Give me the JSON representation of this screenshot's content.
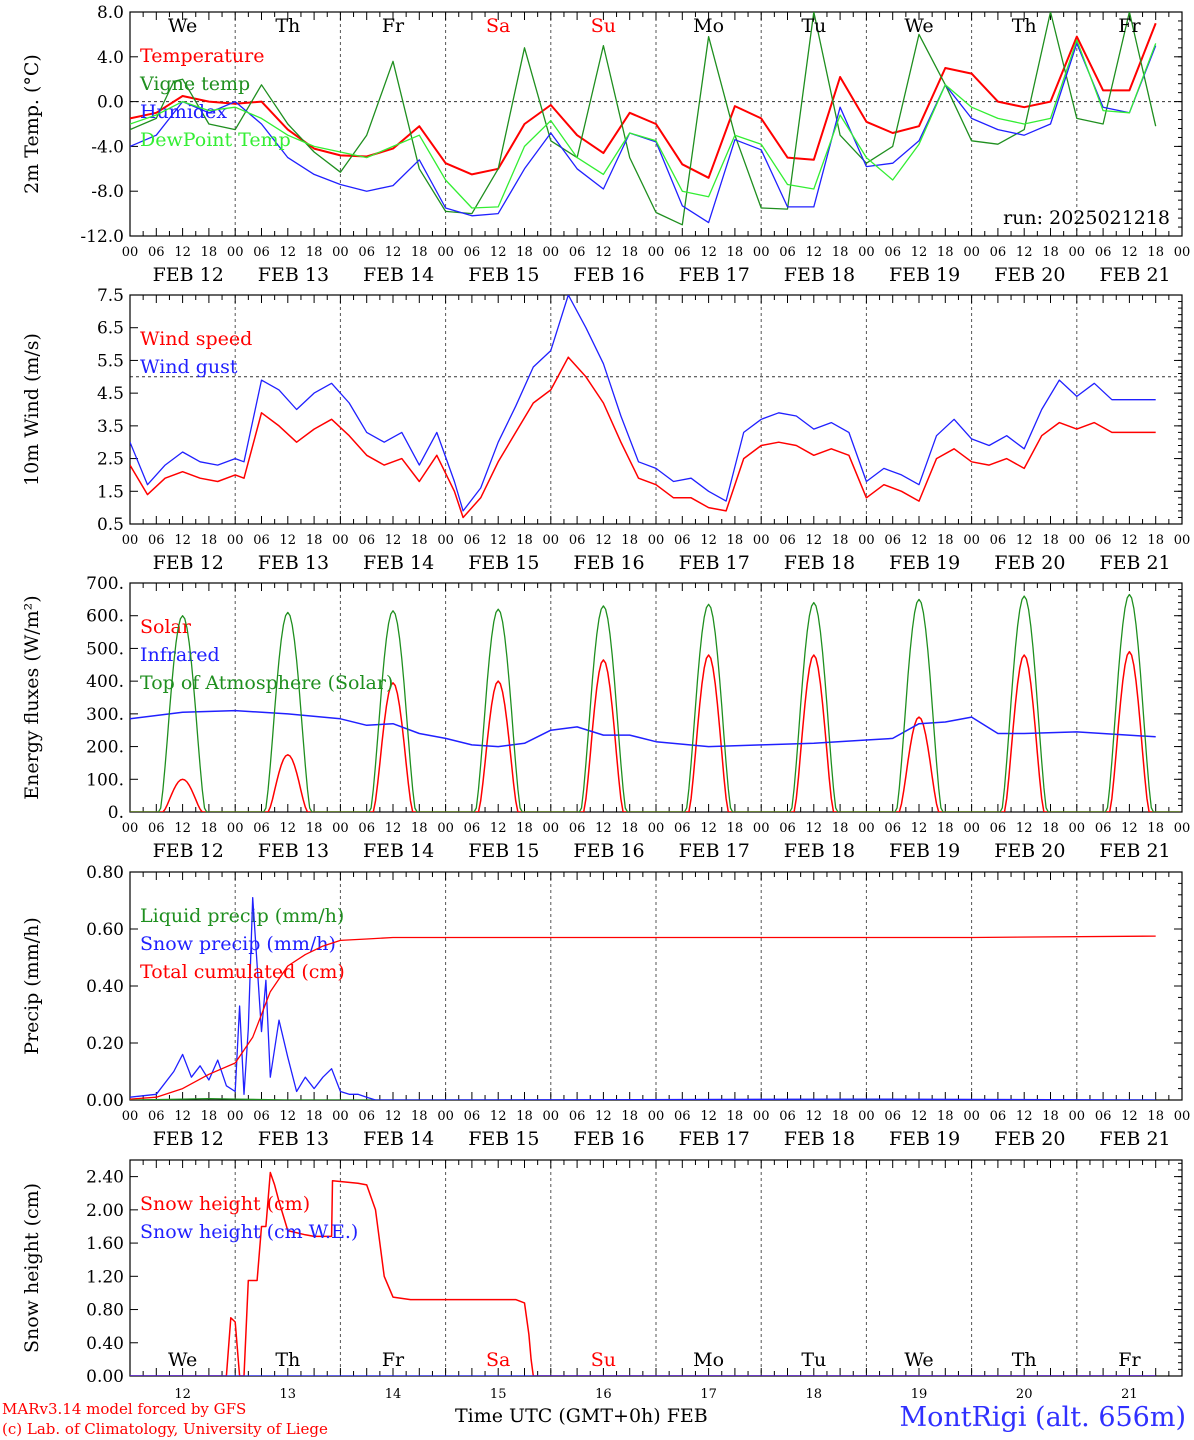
{
  "days": {
    "labels": [
      "We",
      "Th",
      "Fr",
      "Sa",
      "Su",
      "Mo",
      "Tu",
      "We",
      "Th",
      "Fr"
    ],
    "colors": [
      "#000000",
      "#000000",
      "#000000",
      "#ff0000",
      "#ff0000",
      "#000000",
      "#000000",
      "#000000",
      "#000000",
      "#000000"
    ],
    "dates": [
      "FEB 12",
      "FEB 13",
      "FEB 14",
      "FEB 15",
      "FEB 16",
      "FEB 17",
      "FEB 18",
      "FEB 19",
      "FEB 20",
      "FEB 21"
    ],
    "day_numbers": [
      "12",
      "13",
      "14",
      "15",
      "16",
      "17",
      "18",
      "19",
      "20",
      "21"
    ],
    "hour_ticks": [
      "00",
      "06",
      "12",
      "18"
    ],
    "last_tick": "00"
  },
  "chart_data": [
    {
      "id": "temp",
      "type": "line",
      "ylabel": "2m Temp. (°C)",
      "ylim": [
        -12,
        8
      ],
      "yticks": [
        "8.0",
        "4.0",
        "0.0",
        "-4.0",
        "-8.0",
        "-12.0"
      ],
      "ytick_values": [
        8,
        4,
        0,
        -4,
        -8,
        -12
      ],
      "ref_line": 0,
      "show_day_names": true,
      "annotation": "run: 2025021218",
      "series": [
        {
          "name": "Temperature",
          "color": "#ff0000",
          "width": 2,
          "x": [
            0,
            6,
            12,
            18,
            24,
            30,
            36,
            42,
            48,
            54,
            60,
            66,
            72,
            78,
            84,
            90,
            96,
            102,
            108,
            114,
            120,
            126,
            132,
            138,
            144,
            150,
            156,
            162,
            168,
            174,
            180,
            186,
            192,
            198,
            204,
            210,
            216,
            222,
            228,
            234
          ],
          "y": [
            -1.5,
            -1,
            0.5,
            0,
            -0.2,
            0,
            -2.5,
            -4.2,
            -4.8,
            -4.9,
            -4.2,
            -2.2,
            -5.5,
            -6.5,
            -6,
            -2,
            -0.3,
            -3,
            -4.6,
            -1,
            -2,
            -5.6,
            -6.8,
            -0.4,
            -1.5,
            -5,
            -5.2,
            2.2,
            -1.8,
            -2.8,
            -2.2,
            3,
            2.5,
            0,
            -0.5,
            0,
            5.8,
            1,
            1,
            7
          ]
        },
        {
          "name": "Vigne temp",
          "color": "#1f8f1f",
          "width": 1.3,
          "x": [
            0,
            6,
            10,
            12,
            18,
            24,
            30,
            36,
            42,
            48,
            54,
            60,
            66,
            72,
            78,
            84,
            90,
            96,
            102,
            108,
            114,
            120,
            126,
            132,
            138,
            144,
            150,
            156,
            162,
            168,
            174,
            180,
            186,
            192,
            198,
            204,
            210,
            216,
            222,
            228,
            234
          ],
          "y": [
            -2.5,
            -1.5,
            1.8,
            2,
            -2,
            -2.5,
            1.5,
            -2,
            -4.5,
            -6.3,
            -3,
            3.6,
            -6,
            -9.8,
            -10,
            -6,
            4.8,
            -3.5,
            -5,
            5,
            -5,
            -9.9,
            -11,
            5.8,
            -3,
            -9.5,
            -9.6,
            8,
            -3,
            -5.5,
            -4,
            6,
            1.5,
            -3.5,
            -3.8,
            -2.5,
            8,
            -1.5,
            -2,
            8,
            -2.2
          ]
        },
        {
          "name": "Humidex",
          "color": "#2020ff",
          "width": 1.3,
          "x": [
            0,
            6,
            12,
            18,
            24,
            30,
            36,
            42,
            48,
            54,
            60,
            66,
            72,
            78,
            84,
            90,
            96,
            102,
            108,
            114,
            120,
            126,
            132,
            138,
            144,
            150,
            156,
            162,
            168,
            174,
            180,
            186,
            192,
            198,
            204,
            210,
            216,
            222,
            228,
            234
          ],
          "y": [
            -4,
            -3,
            0,
            -1,
            0,
            -2,
            -5,
            -6.5,
            -7.4,
            -8,
            -7.5,
            -5.2,
            -9.5,
            -10.2,
            -10,
            -6,
            -2.8,
            -6,
            -7.8,
            -2.8,
            -3.6,
            -9.3,
            -10.8,
            -3.4,
            -4.3,
            -9.4,
            -9.4,
            -0.5,
            -5.8,
            -5.5,
            -3.5,
            1.5,
            -1.5,
            -2.5,
            -3,
            -2,
            5.2,
            -0.5,
            -1,
            5
          ]
        },
        {
          "name": "DewPoint Temp",
          "color": "#33ee33",
          "width": 1.3,
          "x": [
            0,
            6,
            12,
            18,
            24,
            30,
            36,
            42,
            48,
            54,
            60,
            66,
            72,
            78,
            84,
            90,
            96,
            102,
            108,
            114,
            120,
            126,
            132,
            138,
            144,
            150,
            156,
            162,
            168,
            174,
            180,
            186,
            192,
            198,
            204,
            210,
            216,
            222,
            228,
            234
          ],
          "y": [
            -2,
            -1.2,
            0,
            -0.8,
            -0.5,
            -1.5,
            -3,
            -4,
            -4.5,
            -5,
            -4,
            -3,
            -7,
            -9.5,
            -9.4,
            -4,
            -1.7,
            -5,
            -6.5,
            -2.8,
            -3.5,
            -8,
            -8.5,
            -3,
            -3.8,
            -7.4,
            -7.8,
            -1.2,
            -5,
            -7,
            -3.8,
            1.5,
            -0.5,
            -1.5,
            -2,
            -1.5,
            5.5,
            -0.8,
            -1,
            5.2
          ]
        }
      ]
    },
    {
      "id": "wind",
      "type": "line",
      "ylabel": "10m Wind (m/s)",
      "ylim": [
        0.5,
        7.5
      ],
      "yticks": [
        "7.5",
        "6.5",
        "5.5",
        "4.5",
        "3.5",
        "2.5",
        "1.5",
        "0.5"
      ],
      "ytick_values": [
        7.5,
        6.5,
        5.5,
        4.5,
        3.5,
        2.5,
        1.5,
        0.5
      ],
      "ref_line": 5,
      "show_day_names": false,
      "series": [
        {
          "name": "Wind speed",
          "color": "#ff0000",
          "width": 1.5,
          "x": [
            0,
            4,
            8,
            12,
            16,
            20,
            24,
            26,
            30,
            34,
            38,
            42,
            46,
            50,
            54,
            58,
            62,
            66,
            70,
            74,
            76,
            80,
            84,
            88,
            92,
            96,
            100,
            104,
            108,
            112,
            116,
            120,
            124,
            128,
            132,
            136,
            140,
            144,
            148,
            152,
            156,
            160,
            164,
            168,
            172,
            176,
            180,
            184,
            188,
            192,
            196,
            200,
            204,
            208,
            212,
            216,
            220,
            224,
            228,
            232,
            234
          ],
          "y": [
            2.3,
            1.4,
            1.9,
            2.1,
            1.9,
            1.8,
            2.0,
            1.9,
            3.9,
            3.5,
            3.0,
            3.4,
            3.7,
            3.2,
            2.6,
            2.3,
            2.5,
            1.8,
            2.6,
            1.5,
            0.7,
            1.3,
            2.4,
            3.3,
            4.2,
            4.6,
            5.6,
            5.0,
            4.2,
            3.0,
            1.9,
            1.7,
            1.3,
            1.3,
            1.0,
            0.9,
            2.5,
            2.9,
            3.0,
            2.9,
            2.6,
            2.8,
            2.6,
            1.3,
            1.7,
            1.5,
            1.2,
            2.5,
            2.8,
            2.4,
            2.3,
            2.5,
            2.2,
            3.2,
            3.6,
            3.4,
            3.6,
            3.3,
            3.3,
            3.3,
            3.3
          ]
        },
        {
          "name": "Wind gust",
          "color": "#2020ff",
          "width": 1.3,
          "x": [
            0,
            4,
            8,
            12,
            16,
            20,
            24,
            26,
            30,
            34,
            38,
            42,
            46,
            50,
            54,
            58,
            62,
            66,
            70,
            74,
            76,
            80,
            84,
            88,
            92,
            96,
            100,
            104,
            108,
            112,
            116,
            120,
            124,
            128,
            132,
            136,
            140,
            144,
            148,
            152,
            156,
            160,
            164,
            168,
            172,
            176,
            180,
            184,
            188,
            192,
            196,
            200,
            204,
            208,
            212,
            216,
            220,
            224,
            228,
            232,
            234
          ],
          "y": [
            3.0,
            1.7,
            2.3,
            2.7,
            2.4,
            2.3,
            2.5,
            2.4,
            4.9,
            4.6,
            4.0,
            4.5,
            4.8,
            4.2,
            3.3,
            3.0,
            3.3,
            2.3,
            3.3,
            1.8,
            0.9,
            1.6,
            3.0,
            4.1,
            5.3,
            5.8,
            7.5,
            6.5,
            5.4,
            3.8,
            2.4,
            2.2,
            1.8,
            1.9,
            1.5,
            1.2,
            3.3,
            3.7,
            3.9,
            3.8,
            3.4,
            3.6,
            3.3,
            1.8,
            2.2,
            2.0,
            1.7,
            3.2,
            3.7,
            3.1,
            2.9,
            3.2,
            2.8,
            4.0,
            4.9,
            4.4,
            4.8,
            4.3,
            4.3,
            4.3,
            4.3
          ]
        }
      ]
    },
    {
      "id": "flux",
      "type": "line",
      "ylabel": "Energy fluxes (W/m²)",
      "ylim": [
        0,
        700
      ],
      "yticks": [
        "700.",
        "600.",
        "500.",
        "400.",
        "300.",
        "200.",
        "100.",
        "0."
      ],
      "ytick_values": [
        700,
        600,
        500,
        400,
        300,
        200,
        100,
        0
      ],
      "show_day_names": false,
      "series": [
        {
          "name": "Solar",
          "color": "#ff0000",
          "width": 1.5,
          "peaks": [
            100,
            175,
            395,
            400,
            465,
            480,
            480,
            290,
            480,
            490
          ]
        },
        {
          "name": "Infrared",
          "color": "#2020ff",
          "width": 1.5,
          "x": [
            0,
            12,
            24,
            36,
            48,
            54,
            60,
            66,
            72,
            78,
            84,
            90,
            96,
            102,
            108,
            114,
            120,
            132,
            144,
            156,
            168,
            174,
            180,
            186,
            192,
            198,
            204,
            216,
            234
          ],
          "y": [
            285,
            305,
            310,
            300,
            285,
            265,
            270,
            240,
            225,
            205,
            200,
            210,
            250,
            260,
            235,
            235,
            215,
            200,
            205,
            210,
            220,
            225,
            270,
            275,
            290,
            240,
            240,
            245,
            230
          ]
        },
        {
          "name": "Top of Atmosphere (Solar)",
          "color": "#1f8f1f",
          "width": 1.3,
          "peaks": [
            600,
            610,
            615,
            620,
            630,
            635,
            640,
            650,
            660,
            665
          ]
        }
      ]
    },
    {
      "id": "precip",
      "type": "line",
      "ylabel": "Precip (mm/h)",
      "ylim": [
        0,
        0.8
      ],
      "yticks": [
        "0.80",
        "0.60",
        "0.40",
        "0.20",
        "0.00"
      ],
      "ytick_values": [
        0.8,
        0.6,
        0.4,
        0.2,
        0
      ],
      "show_day_names": false,
      "series": [
        {
          "name": "Liquid precip (mm/h)",
          "color": "#1f8f1f",
          "width": 1.3,
          "x": [
            0,
            12,
            18,
            24,
            36,
            48,
            234
          ],
          "y": [
            0,
            0.003,
            0.005,
            0.003,
            0,
            0,
            0
          ]
        },
        {
          "name": "Snow precip (mm/h)",
          "color": "#2020ff",
          "width": 1.3,
          "x": [
            0,
            6,
            10,
            12,
            14,
            16,
            18,
            20,
            22,
            24,
            25,
            26,
            27,
            28,
            30,
            31,
            32,
            34,
            36,
            38,
            40,
            42,
            44,
            46,
            48,
            50,
            52,
            54,
            56,
            60,
            72,
            168,
            234
          ],
          "y": [
            0.01,
            0.02,
            0.1,
            0.16,
            0.08,
            0.12,
            0.07,
            0.14,
            0.05,
            0.03,
            0.33,
            0.02,
            0.25,
            0.71,
            0.24,
            0.42,
            0.08,
            0.28,
            0.15,
            0.03,
            0.08,
            0.04,
            0.08,
            0.11,
            0.03,
            0.02,
            0.02,
            0.01,
            0,
            0,
            0,
            0.003,
            0
          ]
        },
        {
          "name": "Total cumulated (cm)",
          "color": "#ff0000",
          "width": 1.3,
          "x": [
            0,
            6,
            12,
            18,
            24,
            28,
            32,
            36,
            40,
            44,
            48,
            54,
            60,
            72,
            96,
            192,
            234
          ],
          "y": [
            0.003,
            0.01,
            0.04,
            0.09,
            0.13,
            0.22,
            0.38,
            0.47,
            0.51,
            0.54,
            0.56,
            0.565,
            0.57,
            0.57,
            0.57,
            0.57,
            0.575
          ]
        }
      ]
    },
    {
      "id": "snow",
      "type": "line",
      "ylabel": "Snow height (cm)",
      "ylim": [
        0,
        2.6
      ],
      "yticks": [
        "2.40",
        "2.00",
        "1.60",
        "1.20",
        "0.80",
        "0.40",
        "0.00"
      ],
      "ytick_values": [
        2.4,
        2.0,
        1.6,
        1.2,
        0.8,
        0.4,
        0
      ],
      "show_day_names": true,
      "day_names_bottom": true,
      "series": [
        {
          "name": "Snow height (cm)",
          "color": "#ff0000",
          "width": 1.5,
          "x": [
            0,
            22,
            23,
            24,
            25,
            26,
            27,
            28,
            29,
            30,
            31,
            32,
            33,
            34,
            36,
            40,
            42,
            44,
            46,
            46.2,
            52,
            54,
            56,
            58,
            60,
            64,
            84,
            88,
            90,
            91,
            91.5,
            92,
            234
          ],
          "y": [
            0,
            0,
            0.7,
            0.65,
            0,
            0,
            1.15,
            1.15,
            1.15,
            1.8,
            1.8,
            2.45,
            2.3,
            2.1,
            1.75,
            1.7,
            1.68,
            1.68,
            1.68,
            2.35,
            2.32,
            2.3,
            2.0,
            1.2,
            0.95,
            0.92,
            0.92,
            0.92,
            0.88,
            0.5,
            0.2,
            0,
            0
          ]
        },
        {
          "name": "Snow height (cm W.E.)",
          "color": "#2020ff",
          "width": 1.3,
          "x": [
            0,
            234
          ],
          "y": [
            0,
            0
          ]
        }
      ]
    }
  ],
  "footer": {
    "credit_line1": "MARv3.14 model forced by GFS",
    "credit_line2": "(c) Lab. of Climatology, University of Liege",
    "x_title": "Time UTC (GMT+0h)",
    "month": "FEB",
    "station": "MontRigi (alt. 656m)"
  }
}
